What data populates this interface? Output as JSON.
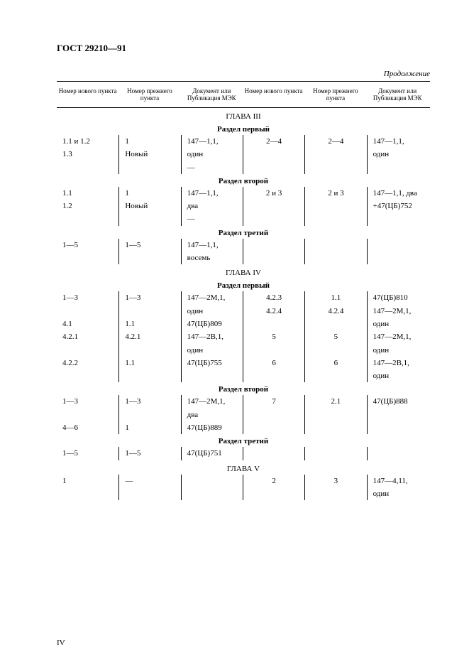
{
  "doc_title": "ГОСТ 29210—91",
  "continuation": "Продолжение",
  "headers": {
    "c1": "Номер нового пункта",
    "c2": "Номер прежнего пункта",
    "c3": "Документ или Публикация МЭК",
    "c4": "Номер нового пункта",
    "c5": "Номер прежнего пункта",
    "c6": "Документ или Публикация МЭК"
  },
  "chapter3": "ГЛАВА III",
  "ch3_s1": {
    "title": "Раздел первый",
    "r1": {
      "c1": "1.1 и 1.2",
      "c2": "1",
      "c3": "147—1,1,",
      "c4": "2—4",
      "c5": "2—4",
      "c6": "147—1,1,"
    },
    "r2": {
      "c1": "1.3",
      "c2": "Новый",
      "c3": "один",
      "c4": "",
      "c5": "",
      "c6": "один"
    },
    "r3": {
      "c1": "",
      "c2": "",
      "c3": "—",
      "c4": "",
      "c5": "",
      "c6": ""
    }
  },
  "ch3_s2": {
    "title": "Раздел второй",
    "r1": {
      "c1": "1.1",
      "c2": "1",
      "c3": "147—1,1,",
      "c4": "2 и 3",
      "c5": "2 и 3",
      "c6": "147—1,1, два"
    },
    "r2": {
      "c1": "1.2",
      "c2": "Новый",
      "c3": "два",
      "c4": "",
      "c5": "",
      "c6": "+47(ЦБ)752"
    },
    "r3": {
      "c1": "",
      "c2": "",
      "c3": "—",
      "c4": "",
      "c5": "",
      "c6": ""
    }
  },
  "ch3_s3": {
    "title": "Раздел третий",
    "r1": {
      "c1": "1—5",
      "c2": "1—5",
      "c3": "147—1,1,",
      "c4": "",
      "c5": "",
      "c6": ""
    },
    "r2": {
      "c1": "",
      "c2": "",
      "c3": "восемь",
      "c4": "",
      "c5": "",
      "c6": ""
    }
  },
  "chapter4": "ГЛАВА IV",
  "ch4_s1": {
    "title": "Раздел первый",
    "r1": {
      "c1": "1—3",
      "c2": "1—3",
      "c3": "147—2М,1,",
      "c4": "4.2.3",
      "c5": "1.1",
      "c6": "47(ЦБ)810"
    },
    "r2": {
      "c1": "",
      "c2": "",
      "c3": "один",
      "c4": "4.2.4",
      "c5": "4.2.4",
      "c6": "147—2М,1,"
    },
    "r3": {
      "c1": "4.1",
      "c2": "1.1",
      "c3": "47(ЦБ)809",
      "c4": "",
      "c5": "",
      "c6": "один"
    },
    "r4": {
      "c1": "4.2.1",
      "c2": "4.2.1",
      "c3": "147—2В,1,",
      "c4": "5",
      "c5": "5",
      "c6": "147—2М,1,"
    },
    "r5": {
      "c1": "",
      "c2": "",
      "c3": "один",
      "c4": "",
      "c5": "",
      "c6": "один"
    },
    "r6": {
      "c1": "4.2.2",
      "c2": "1.1",
      "c3": "47(ЦБ)755",
      "c4": "6",
      "c5": "6",
      "c6": "147—2В,1,"
    },
    "r7": {
      "c1": "",
      "c2": "",
      "c3": "",
      "c4": "",
      "c5": "",
      "c6": "один"
    }
  },
  "ch4_s2": {
    "title": "Раздел второй",
    "r1": {
      "c1": "1—3",
      "c2": "1—3",
      "c3": "147—2М,1,",
      "c4": "7",
      "c5": "2.1",
      "c6": "47(ЦБ)888"
    },
    "r2": {
      "c1": "",
      "c2": "",
      "c3": "два",
      "c4": "",
      "c5": "",
      "c6": ""
    },
    "r3": {
      "c1": "4—6",
      "c2": "1",
      "c3": "47(ЦБ)889",
      "c4": "",
      "c5": "",
      "c6": ""
    }
  },
  "ch4_s3": {
    "title": "Раздел третий",
    "r1": {
      "c1": "1—5",
      "c2": "1—5",
      "c3": "47(ЦБ)751",
      "c4": "",
      "c5": "",
      "c6": ""
    }
  },
  "chapter5": "ГЛАВА V",
  "ch5_s1": {
    "r1": {
      "c1": "1",
      "c2": "—",
      "c3": "",
      "c4": "2",
      "c5": "3",
      "c6": "147—4,11,"
    },
    "r2": {
      "c1": "",
      "c2": "",
      "c3": "",
      "c4": "",
      "c5": "",
      "c6": "один"
    }
  },
  "page_number": "IV"
}
